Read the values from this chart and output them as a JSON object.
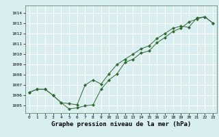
{
  "series1": {
    "x": [
      0,
      1,
      2,
      3,
      4,
      5,
      6,
      7,
      8,
      9,
      10,
      11,
      12,
      13,
      14,
      15,
      16,
      17,
      18,
      19,
      20,
      21,
      22,
      23
    ],
    "y": [
      1006.3,
      1006.6,
      1006.6,
      1006.0,
      1005.3,
      1004.7,
      1004.8,
      1005.0,
      1005.1,
      1006.6,
      1007.5,
      1008.1,
      1009.2,
      1009.5,
      1010.1,
      1010.3,
      1011.1,
      1011.6,
      1012.2,
      1012.5,
      1013.1,
      1013.4,
      1013.6,
      1013.0
    ]
  },
  "series2": {
    "x": [
      0,
      1,
      2,
      3,
      4,
      5,
      6,
      7,
      8,
      9,
      10,
      11,
      12,
      13,
      14,
      15,
      16,
      17,
      18,
      19,
      20,
      21,
      22,
      23
    ],
    "y": [
      1006.3,
      1006.6,
      1006.6,
      1006.0,
      1005.3,
      1005.2,
      1005.1,
      1007.0,
      1007.5,
      1007.1,
      1008.1,
      1009.0,
      1009.5,
      1010.0,
      1010.5,
      1010.8,
      1011.5,
      1012.0,
      1012.5,
      1012.7,
      1012.6,
      1013.5,
      1013.6,
      1013.0
    ]
  },
  "line_color": "#2d6a2d",
  "marker": "D",
  "markersize": 2.2,
  "bg_color": "#d8eef0",
  "grid_color": "#ffffff",
  "xlim": [
    -0.5,
    23.5
  ],
  "ylim": [
    1004.3,
    1014.7
  ],
  "yticks": [
    1005,
    1006,
    1007,
    1008,
    1009,
    1010,
    1011,
    1012,
    1013,
    1014
  ],
  "xticks": [
    0,
    1,
    2,
    3,
    4,
    5,
    6,
    7,
    8,
    9,
    10,
    11,
    12,
    13,
    14,
    15,
    16,
    17,
    18,
    19,
    20,
    21,
    22,
    23
  ],
  "xlabel": "Graphe pression niveau de la mer (hPa)",
  "tick_fontsize": 4.5,
  "label_fontsize": 6.5
}
